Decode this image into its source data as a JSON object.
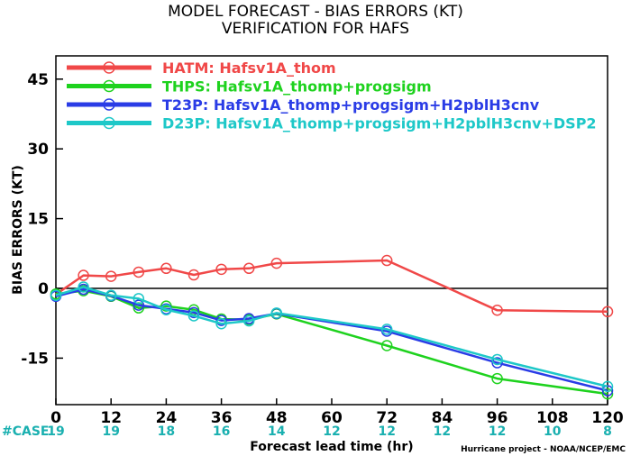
{
  "chart_data": {
    "type": "line",
    "title": "MODEL FORECAST - BIAS ERRORS (KT)",
    "subtitle": "VERIFICATION FOR HAFS",
    "xlabel": "Forecast lead time (hr)",
    "ylabel": "BIAS ERRORS (KT)",
    "xlim": [
      0,
      120
    ],
    "ylim": [
      -25,
      50
    ],
    "x_ticks": [
      0,
      12,
      24,
      36,
      48,
      60,
      72,
      84,
      96,
      108,
      120
    ],
    "y_ticks": [
      -15,
      0,
      15,
      30,
      45
    ],
    "grid": false,
    "zero_line": true,
    "legend_position": "top-left",
    "case_label": "#CASE",
    "cases": [
      {
        "x": 0,
        "n": "19"
      },
      {
        "x": 12,
        "n": "19"
      },
      {
        "x": 24,
        "n": "18"
      },
      {
        "x": 36,
        "n": "16"
      },
      {
        "x": 48,
        "n": "14"
      },
      {
        "x": 60,
        "n": "12"
      },
      {
        "x": 72,
        "n": "12"
      },
      {
        "x": 84,
        "n": "12"
      },
      {
        "x": 96,
        "n": "12"
      },
      {
        "x": 108,
        "n": "10"
      },
      {
        "x": 120,
        "n": "8"
      }
    ],
    "credit": "Hurricane project - NOAA/NCEP/EMC",
    "series": [
      {
        "name": "HATM: Hafsv1A_thom",
        "color": "#f04848",
        "x": [
          0,
          6,
          12,
          18,
          24,
          30,
          36,
          42,
          48,
          72,
          96,
          120
        ],
        "y": [
          -1.3,
          2.8,
          2.6,
          3.5,
          4.3,
          2.9,
          4.1,
          4.3,
          5.4,
          6.0,
          -4.7,
          -5.0
        ]
      },
      {
        "name": "THPS: Hafsv1A_thomp+progsigm",
        "color": "#1ed21e",
        "x": [
          0,
          6,
          12,
          18,
          24,
          30,
          36,
          42,
          48,
          72,
          96,
          120
        ],
        "y": [
          -1.2,
          -0.5,
          -1.7,
          -4.2,
          -3.8,
          -4.6,
          -6.6,
          -6.7,
          -5.5,
          -12.3,
          -19.4,
          -22.7
        ]
      },
      {
        "name": "T23P: Hafsv1A_thomp+progsigm+H2pblH3cnv",
        "color": "#2a3ce6",
        "x": [
          0,
          6,
          12,
          18,
          24,
          30,
          36,
          42,
          48,
          72,
          96,
          120
        ],
        "y": [
          -1.7,
          -0.2,
          -1.6,
          -3.6,
          -4.4,
          -5.2,
          -6.9,
          -6.5,
          -5.4,
          -9.2,
          -16.0,
          -22.0
        ]
      },
      {
        "name": "D23P: Hafsv1A_thomp+progsigm+H2pblH3cnv+DSP2",
        "color": "#1ec8c8",
        "x": [
          0,
          6,
          12,
          18,
          24,
          30,
          36,
          42,
          48,
          72,
          96,
          120
        ],
        "y": [
          -1.5,
          0.3,
          -1.5,
          -2.2,
          -4.6,
          -5.9,
          -7.6,
          -7.0,
          -5.3,
          -8.8,
          -15.3,
          -21.1
        ]
      }
    ]
  }
}
